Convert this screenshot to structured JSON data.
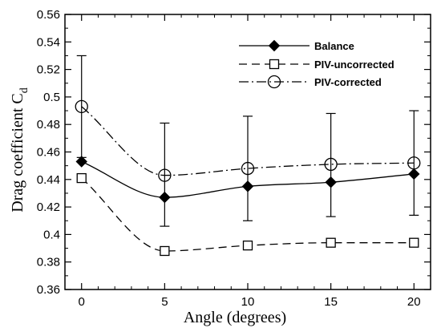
{
  "chart_data": {
    "type": "line",
    "title": "",
    "xlabel": "Angle (degrees)",
    "ylabel_main": "Drag coefficient C",
    "ylabel_sub": "d",
    "xlim": [
      -1,
      21
    ],
    "ylim": [
      0.36,
      0.56
    ],
    "xticks": [
      0,
      5,
      10,
      15,
      20
    ],
    "yticks": [
      0.36,
      0.38,
      0.4,
      0.42,
      0.44,
      0.46,
      0.48,
      0.5,
      0.52,
      0.54,
      0.56
    ],
    "ytick_labels": [
      "0.36",
      "0.38",
      "0.4",
      "0.42",
      "0.44",
      "0.46",
      "0.48",
      "0.5",
      "0.52",
      "0.54",
      "0.56"
    ],
    "grid": false,
    "legend_position": "top-right",
    "series": [
      {
        "name": "Balance",
        "x": [
          0,
          5,
          10,
          15,
          20
        ],
        "y": [
          0.453,
          0.427,
          0.435,
          0.438,
          0.444
        ],
        "line_style": "solid",
        "marker": "filled-diamond"
      },
      {
        "name": "PIV-uncorrected",
        "x": [
          0,
          5,
          10,
          15,
          20
        ],
        "y": [
          0.441,
          0.388,
          0.392,
          0.394,
          0.394
        ],
        "line_style": "dashed",
        "marker": "open-square"
      },
      {
        "name": "PIV-corrected",
        "x": [
          0,
          5,
          10,
          15,
          20
        ],
        "y": [
          0.493,
          0.443,
          0.448,
          0.451,
          0.452
        ],
        "line_style": "dash-dot",
        "marker": "open-circle",
        "error_low": [
          0.456,
          0.406,
          0.41,
          0.413,
          0.414
        ],
        "error_high": [
          0.53,
          0.481,
          0.486,
          0.488,
          0.49
        ]
      }
    ]
  }
}
